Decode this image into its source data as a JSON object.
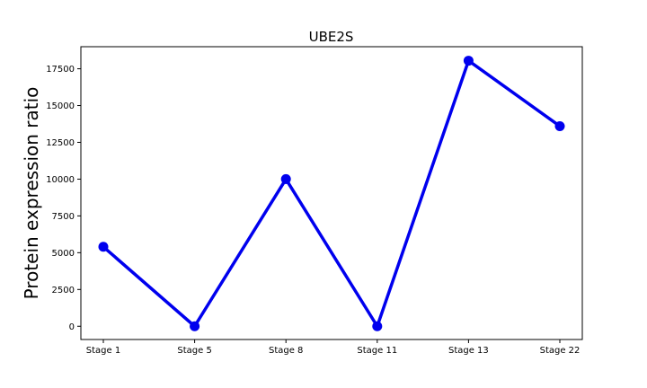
{
  "chart_data": {
    "type": "line",
    "title": "UBE2S",
    "xlabel": "",
    "ylabel": "Protein expression ratio",
    "categories": [
      "Stage 1",
      "Stage 5",
      "Stage 8",
      "Stage 11",
      "Stage 13",
      "Stage 22"
    ],
    "series": [
      {
        "values": [
          5400,
          0,
          10000,
          0,
          18050,
          13600
        ]
      }
    ],
    "ylim": [
      -900,
      19000
    ],
    "yticks": [
      0,
      2500,
      5000,
      7500,
      10000,
      12500,
      15000,
      17500
    ],
    "grid": false,
    "line_color": "#0000ee"
  }
}
